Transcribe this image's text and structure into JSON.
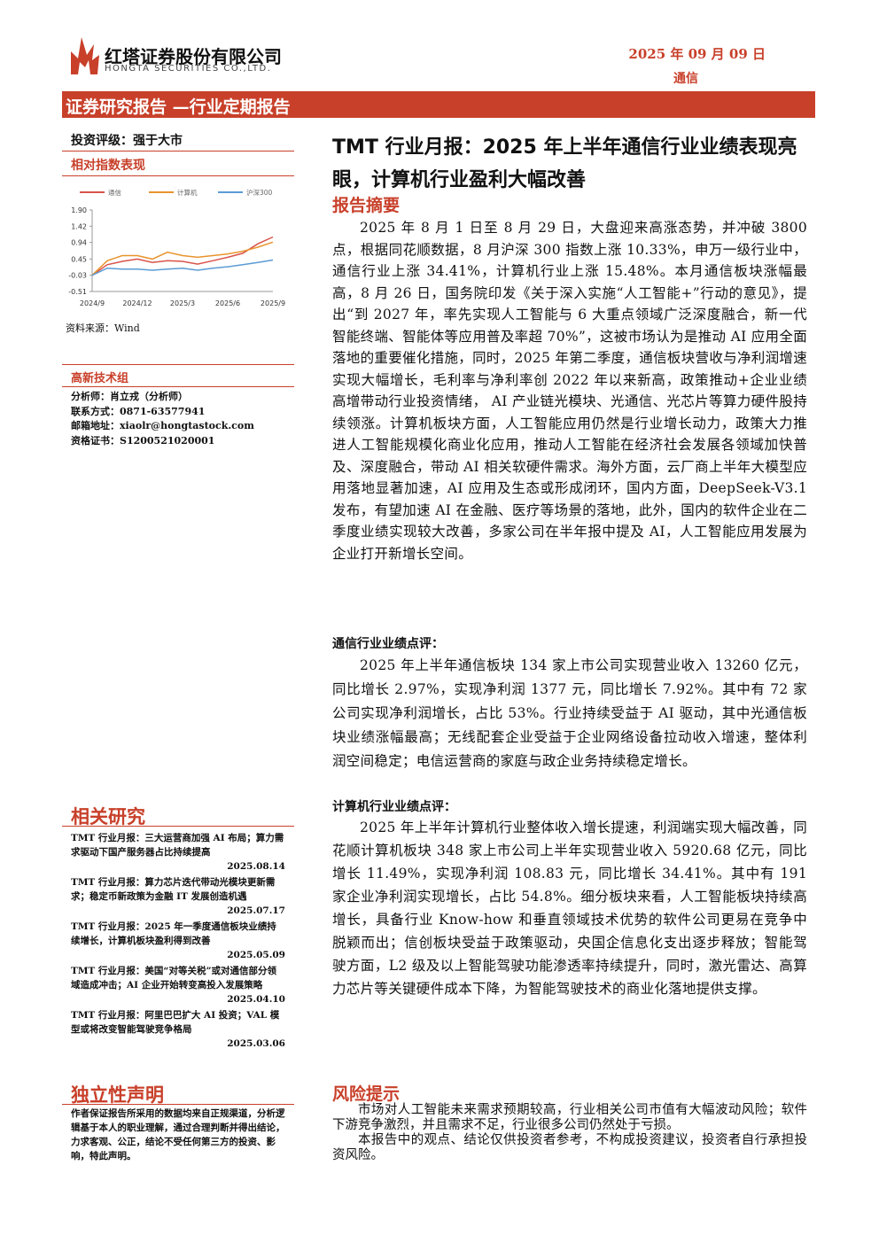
{
  "header": {
    "company": "红塔证券股份有限公司",
    "company_en": "HONGTA SECURITIES CO.,LTD.",
    "date": "2025 年 09 月 09 日",
    "sector": "通信",
    "report_type": "证券研究报告 —行业定期报告"
  },
  "left": {
    "rating": "投资评级：强于大市",
    "index_title": "相对指数表现",
    "source": "资料来源：Wind",
    "group": "高新技术组",
    "analyst": [
      "分析师：肖立戎（分析师）",
      "联系方式：0871-63577941",
      "邮箱地址：xiaolr@hongtastock.com",
      "资格证书：S1200521020001"
    ],
    "related_title": "相关研究",
    "related": [
      {
        "title": "TMT 行业月报：三大运营商加强 AI 布局；算力需求驱动下国产服务器占比持续提高",
        "date": "2025.08.14"
      },
      {
        "title": "TMT 行业月报：算力芯片迭代带动光模块更新需求；稳定币新政策为金融 IT 发展创造机遇",
        "date": "2025.07.17"
      },
      {
        "title": "TMT 行业月报：2025 年一季度通信板块业绩持续增长，计算机板块盈利得到改善",
        "date": "2025.05.09"
      },
      {
        "title": "TMT 行业月报：美国“对等关税”或对通信部分领域造成冲击；AI 企业开始转变高投入发展策略",
        "date": "2025.04.10"
      },
      {
        "title": "TMT 行业月报：阿里巴巴扩大 AI 投资；VAL 模型或将改变智能驾驶竞争格局",
        "date": "2025.03.06"
      }
    ],
    "independence_title": "独立性声明",
    "independence_text": "作者保证报告所采用的数据均来自正规渠道，分析逻辑基于本人的职业理解，通过合理判断并得出结论，力求客观、公正，结论不受任何第三方的投资、影响，特此声明。"
  },
  "main": {
    "title": "TMT 行业月报：2025 年上半年通信行业业绩表现亮眼，计算机行业盈利大幅改善",
    "abstract_title": "报告摘要",
    "abstract": "2025 年 8 月 1 日至 8 月 29 日，大盘迎来高涨态势，并冲破 3800 点，根据同花顺数据，8 月沪深 300 指数上涨 10.33%，申万一级行业中，通信行业上涨 34.41%，计算机行业上涨 15.48%。本月通信板块涨幅最高，8 月 26 日，国务院印发《关于深入实施“人工智能+”行动的意见》，提出“到 2027 年，率先实现人工智能与 6 大重点领域广泛深度融合，新一代智能终端、智能体等应用普及率超 70%”，这被市场认为是推动 AI 应用全面落地的重要催化措施，同时，2025 年第二季度，通信板块营收与净利润增速实现大幅增长，毛利率与净利率创 2022 年以来新高，政策推动+企业业绩高增带动行业投资情绪， AI 产业链光模块、光通信、光芯片等算力硬件股持续领涨。计算机板块方面，人工智能应用仍然是行业增长动力，政策大力推进人工智能规模化商业化应用，推动人工智能在经济社会发展各领域加快普及、深度融合，带动 AI 相关软硬件需求。海外方面，云厂商上半年大模型应用落地显著加速，AI 应用及生态或形成闭环，国内方面，DeepSeek-V3.1 发布，有望加速 AI 在金融、医疗等场景的落地，此外，国内的软件企业在二季度业绩实现较大改善，多家公司在半年报中提及 AI，人工智能应用发展为企业打开新增长空间。",
    "telecom_title": "通信行业业绩点评：",
    "telecom": "2025 年上半年通信板块 134 家上市公司实现营业收入 13260 亿元，同比增长 2.97%，实现净利润 1377 元，同比增长 7.92%。其中有 72 家公司实现净利润增长，占比 53%。行业持续受益于 AI 驱动，其中光通信板块业绩涨幅最高；无线配套企业受益于企业网络设备拉动收入增速，整体利润空间稳定；电信运营商的家庭与政企业务持续稳定增长。",
    "computer_title": "计算机行业业绩点评：",
    "computer": "2025 年上半年计算机行业整体收入增长提速，利润端实现大幅改善，同花顺计算机板块 348 家上市公司上半年实现营业收入 5920.68 亿元，同比增长 11.49%，实现净利润 108.83 元，同比增长 34.41%。其中有 191 家企业净利润实现增长，占比 54.8%。细分板块来看，人工智能板块持续高增长，具备行业 Know-how 和垂直领域技术优势的软件公司更易在竞争中脱颖而出；信创板块受益于政策驱动，央国企信息化支出逐步释放；智能驾驶方面，L2 级及以上智能驾驶功能渗透率持续提升，同时，激光雷达、高算力芯片等关键硬件成本下降，为智能驾驶技术的商业化落地提供支撑。",
    "risk_title": "风险提示",
    "risk": [
      "市场对人工智能未来需求预期较高，行业相关公司市值有大幅波动风险；软件下游竞争激烈，并且需求不足，行业很多公司仍然处于亏损。",
      "本报告中的观点、结论仅供投资者参考，不构成投资建议，投资者自行承担投资风险。"
    ]
  },
  "chart_data": {
    "type": "line",
    "categories": [
      "2024/9",
      null,
      null,
      "2024/12",
      null,
      null,
      "2025/3",
      null,
      null,
      "2025/6",
      null,
      null,
      "2025/9"
    ],
    "series": [
      {
        "name": "通信",
        "color": "#d9534a",
        "values": [
          -0.03,
          0.28,
          0.38,
          0.45,
          0.35,
          0.4,
          0.38,
          0.3,
          0.4,
          0.5,
          0.62,
          0.9,
          1.1
        ]
      },
      {
        "name": "计算机",
        "color": "#e8942e",
        "values": [
          -0.03,
          0.4,
          0.55,
          0.55,
          0.45,
          0.65,
          0.55,
          0.5,
          0.55,
          0.6,
          0.68,
          0.8,
          0.95
        ]
      },
      {
        "name": "沪深300",
        "color": "#5b9bd5",
        "values": [
          -0.03,
          0.18,
          0.15,
          0.15,
          0.12,
          0.15,
          0.18,
          0.12,
          0.18,
          0.22,
          0.28,
          0.35,
          0.42
        ]
      }
    ],
    "ylim": [
      -0.51,
      1.9
    ],
    "yticks": [
      {
        "value": 1.9,
        "label": "1.90"
      },
      1.42,
      0.94,
      0.45,
      -0.03,
      -0.51
    ]
  }
}
